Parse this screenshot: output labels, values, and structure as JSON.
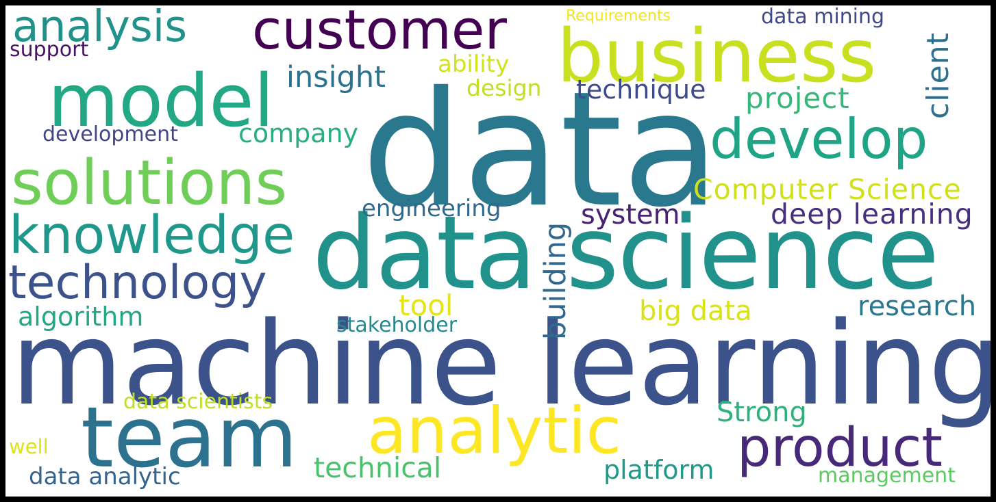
{
  "words": [
    {
      "text": "data",
      "color": "#2a788e"
    },
    {
      "text": "machine learning",
      "color": "#3b528b"
    },
    {
      "text": "data science",
      "color": "#21918c"
    },
    {
      "text": "business",
      "color": "#c8e020"
    },
    {
      "text": "team",
      "color": "#2c728e"
    },
    {
      "text": "customer",
      "color": "#440154"
    },
    {
      "text": "model",
      "color": "#22a884"
    },
    {
      "text": "solutions",
      "color": "#6ece58"
    },
    {
      "text": "develop",
      "color": "#20a486"
    },
    {
      "text": "analytic",
      "color": "#fde725"
    },
    {
      "text": "knowledge",
      "color": "#1f988b"
    },
    {
      "text": "technology",
      "color": "#3b528b"
    },
    {
      "text": "product",
      "color": "#482878"
    },
    {
      "text": "analysis",
      "color": "#21918c"
    },
    {
      "text": "Computer Science",
      "color": "#d0e11c"
    },
    {
      "text": "deep learning",
      "color": "#472f7d"
    },
    {
      "text": "insight",
      "color": "#2c728e"
    },
    {
      "text": "technique",
      "color": "#3e4a89"
    },
    {
      "text": "project",
      "color": "#35b779"
    },
    {
      "text": "client",
      "color": "#2e6f8e"
    },
    {
      "text": "company",
      "color": "#29af7f"
    },
    {
      "text": "system",
      "color": "#482173"
    },
    {
      "text": "engineering",
      "color": "#31688e"
    },
    {
      "text": "building",
      "color": "#31688e"
    },
    {
      "text": "algorithm",
      "color": "#22a884"
    },
    {
      "text": "tool",
      "color": "#e5e419"
    },
    {
      "text": "big data",
      "color": "#d8e219"
    },
    {
      "text": "research",
      "color": "#2a788e"
    },
    {
      "text": "stakeholder",
      "color": "#23898e"
    },
    {
      "text": "Strong",
      "color": "#2db27d"
    },
    {
      "text": "technical",
      "color": "#4ac16d"
    },
    {
      "text": "platform",
      "color": "#1f9a8a"
    },
    {
      "text": "data analytic",
      "color": "#33638d"
    },
    {
      "text": "management",
      "color": "#5ec962"
    },
    {
      "text": "data scientists",
      "color": "#bddf26"
    },
    {
      "text": "ability",
      "color": "#d2e21b"
    },
    {
      "text": "design",
      "color": "#c2df23"
    },
    {
      "text": "development",
      "color": "#414487"
    },
    {
      "text": "data mining",
      "color": "#3e4989"
    },
    {
      "text": "support",
      "color": "#471365"
    },
    {
      "text": "Requirements",
      "color": "#f1e51d"
    },
    {
      "text": "well",
      "color": "#dde318"
    }
  ]
}
